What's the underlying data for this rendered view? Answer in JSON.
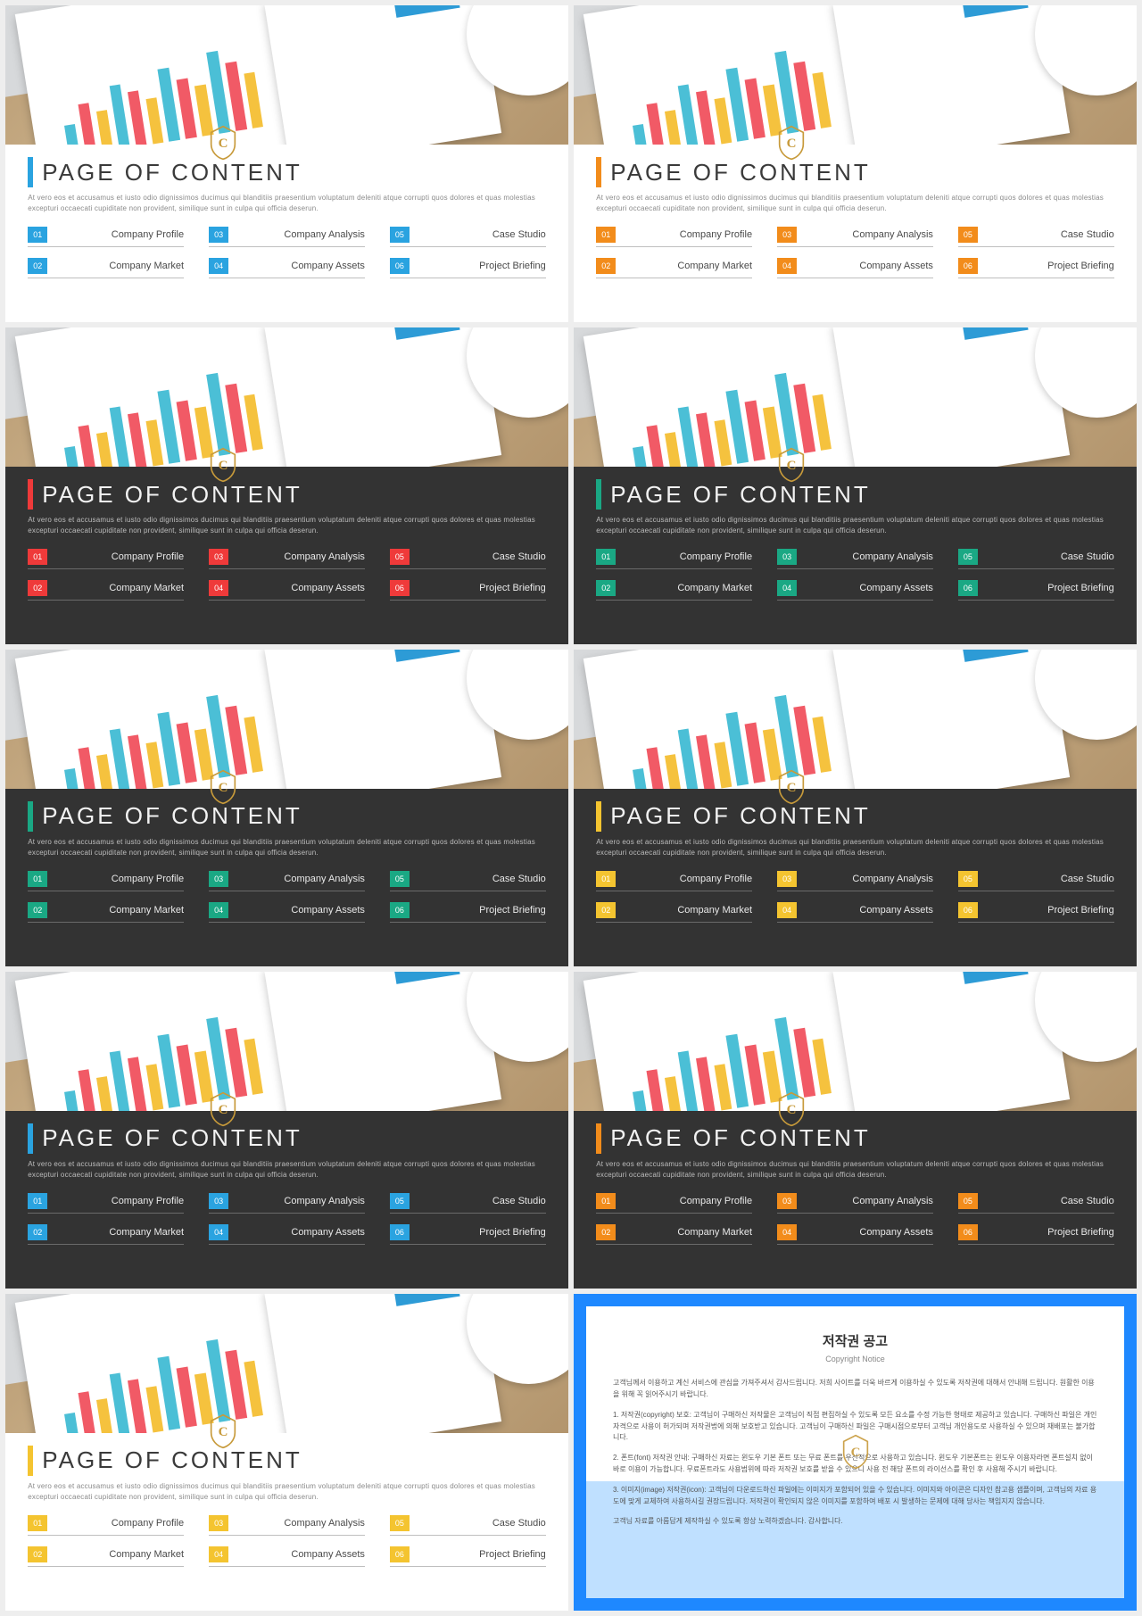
{
  "common": {
    "title": "PAGE OF CONTENT",
    "desc": "At vero eos et accusamus et iusto odio dignissimos ducimus qui blanditiis praesentium voluptatum deleniti atque corrupti quos dolores et quas molestias excepturi occaecati cupiditate non provident, similique sunt in culpa qui officia deserun.",
    "items": [
      {
        "num": "01",
        "label": "Company Profile"
      },
      {
        "num": "03",
        "label": "Company Analysis"
      },
      {
        "num": "05",
        "label": "Case Studio"
      },
      {
        "num": "02",
        "label": "Company Market"
      },
      {
        "num": "04",
        "label": "Company Assets"
      },
      {
        "num": "06",
        "label": "Project Briefing"
      }
    ],
    "watermark_color": "#c79a3a"
  },
  "slides": [
    {
      "band": "light",
      "accent": "#2aa3e0"
    },
    {
      "band": "light",
      "accent": "#f28c1b"
    },
    {
      "band": "dark",
      "accent": "#ef3a3a"
    },
    {
      "band": "dark",
      "accent": "#1aa884"
    },
    {
      "band": "dark",
      "accent": "#1aa884"
    },
    {
      "band": "dark",
      "accent": "#f4c430"
    },
    {
      "band": "dark",
      "accent": "#2aa3e0"
    },
    {
      "band": "dark",
      "accent": "#f28c1b"
    },
    {
      "band": "light",
      "accent": "#f4c430"
    }
  ],
  "copyright": {
    "title": "저작권 공고",
    "subtitle": "Copyright Notice",
    "p0": "고객님께서 이용하고 계신 서비스에 관심을 가져주셔서 감사드립니다. 저희 사이트를 더욱 바르게 이용하실 수 있도록 저작권에 대해서 안내해 드립니다. 원활한 이용을 위해 꼭 읽어주시기 바랍니다.",
    "p1": "1. 저작권(copyright) 보호: 고객님이 구매하신 저작물은 고객님이 직접 편집하실 수 있도록 모든 요소를 수정 가능한 형태로 제공하고 있습니다. 구매하신 파일은 개인자격으로 사용이 허가되며 저작권법에 의해 보호받고 있습니다. 고객님이 구매하신 파일은 구매시점으로부터 고객님 개인용도로 사용하실 수 있으며 재배포는 불가합니다.",
    "p2": "2. 폰트(font) 저작권 안내: 구매하신 자료는 윈도우 기본 폰트 또는 무료 폰트를 우선적으로 사용하고 있습니다. 윈도우 기본폰트는 윈도우 이용자라면 폰트설치 없이 바로 이용이 가능합니다. 무료폰트라도 사용범위에 따라 저작권 보호를 받을 수 있으니 사용 전 해당 폰트의 라이선스를 확인 후 사용해 주시기 바랍니다.",
    "p3": "3. 이미지(image) 저작권(icon): 고객님이 다운로드하신 파일에는 이미지가 포함되어 있을 수 있습니다. 이미지와 아이콘은 디자인 참고용 샘플이며, 고객님의 자료 용도에 맞게 교체하여 사용하시길 권장드립니다. 저작권이 확인되지 않은 이미지를 포함하여 배포 시 발생하는 문제에 대해 당사는 책임지지 않습니다.",
    "p4": "고객님 자료를 아름답게 제작하실 수 있도록 항상 노력하겠습니다. 감사합니다."
  }
}
